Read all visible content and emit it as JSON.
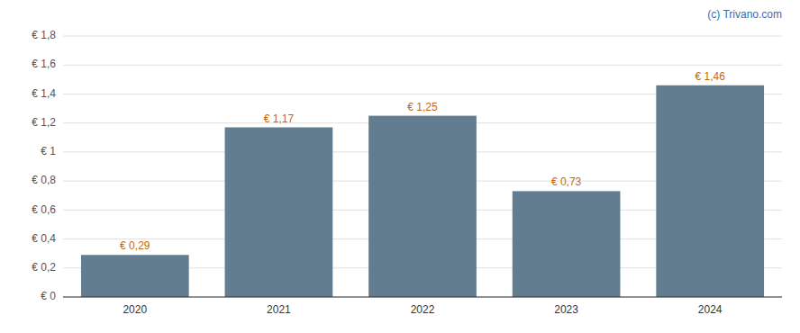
{
  "chart_data": {
    "type": "bar",
    "categories": [
      "2020",
      "2021",
      "2022",
      "2023",
      "2024"
    ],
    "values": [
      0.29,
      1.17,
      1.25,
      0.73,
      1.46
    ],
    "value_labels": [
      "€ 0,29",
      "€ 1,17",
      "€ 1,25",
      "€ 0,73",
      "€ 1,46"
    ],
    "data_labels": true,
    "color": "#617d8f",
    "ylim": [
      0,
      1.8
    ],
    "yticks": [
      {
        "value": 0,
        "label": "€ 0"
      },
      {
        "value": 0.2,
        "label": "€ 0,2"
      },
      {
        "value": 0.4,
        "label": "€ 0,4"
      },
      {
        "value": 0.6,
        "label": "€ 0,6"
      },
      {
        "value": 0.8,
        "label": "€ 0,8"
      },
      {
        "value": 1.0,
        "label": "€ 1"
      },
      {
        "value": 1.2,
        "label": "€ 1,2"
      },
      {
        "value": 1.4,
        "label": "€ 1,4"
      },
      {
        "value": 1.6,
        "label": "€ 1,6"
      },
      {
        "value": 1.8,
        "label": "€ 1,8"
      }
    ],
    "grid": true,
    "annotations": [
      "(c) Trivano.com"
    ]
  }
}
